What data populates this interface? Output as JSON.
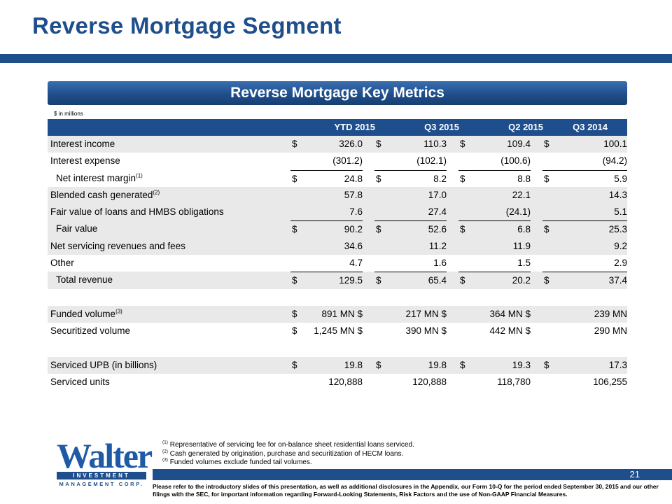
{
  "slide": {
    "title": "Reverse Mortgage Segment",
    "banner": "Reverse Mortgage Key Metrics",
    "units_note": "$ in millions",
    "page_number": "21"
  },
  "table": {
    "columns": [
      "YTD 2015",
      "Q3 2015",
      "Q2 2015",
      "Q3 2014"
    ],
    "rows": [
      {
        "label": "Interest income",
        "sup": "",
        "cur": "$",
        "values": [
          "326.0",
          "110.3",
          "109.4",
          "100.1"
        ]
      },
      {
        "label": "Interest expense",
        "sup": "",
        "cur": "",
        "values": [
          "(301.2)",
          "(102.1)",
          "(100.6)",
          "(94.2)"
        ]
      },
      {
        "label": "Net interest margin",
        "sup": "(1)",
        "cur": "$",
        "values": [
          "24.8",
          "8.2",
          "8.8",
          "5.9"
        ]
      },
      {
        "label": "Blended cash generated",
        "sup": "(2)",
        "cur": "",
        "values": [
          "57.8",
          "17.0",
          "22.1",
          "14.3"
        ]
      },
      {
        "label": "Fair value of loans and HMBS obligations",
        "sup": "",
        "cur": "",
        "values": [
          "7.6",
          "27.4",
          "(24.1)",
          "5.1"
        ]
      },
      {
        "label": "Fair value",
        "sup": "",
        "cur": "$",
        "values": [
          "90.2",
          "52.6",
          "6.8",
          "25.3"
        ]
      },
      {
        "label": "Net servicing revenues and fees",
        "sup": "",
        "cur": "",
        "values": [
          "34.6",
          "11.2",
          "11.9",
          "9.2"
        ]
      },
      {
        "label": "Other",
        "sup": "",
        "cur": "",
        "values": [
          "4.7",
          "1.6",
          "1.5",
          "2.9"
        ]
      },
      {
        "label": "Total revenue",
        "sup": "",
        "cur": "$",
        "values": [
          "129.5",
          "65.4",
          "20.2",
          "37.4"
        ]
      },
      {
        "label": "Funded volume",
        "sup": "(3)",
        "cur": "$",
        "values": [
          "891 MN $",
          "217 MN $",
          "364 MN $",
          "239 MN"
        ]
      },
      {
        "label": "Securitized volume",
        "sup": "",
        "cur": "$",
        "values": [
          "1,245 MN $",
          "390 MN $",
          "442 MN $",
          "290 MN"
        ]
      },
      {
        "label": "Serviced UPB (in billions)",
        "sup": "",
        "cur": "$",
        "values": [
          "19.8",
          "19.8",
          "19.3",
          "17.3"
        ]
      },
      {
        "label": "Serviced units",
        "sup": "",
        "cur": "",
        "values": [
          "120,888",
          "120,888",
          "118,780",
          "106,255"
        ]
      }
    ]
  },
  "footnotes": [
    {
      "mark": "(1)",
      "text": "Representative of servicing fee for on-balance sheet residential loans serviced."
    },
    {
      "mark": "(2)",
      "text": "Cash generated by origination, purchase and securitization of HECM loans."
    },
    {
      "mark": "(3)",
      "text": "Funded volumes exclude funded tail volumes."
    }
  ],
  "logo": {
    "word": "Walter",
    "line1": "INVESTMENT",
    "line2": "MANAGEMENT CORP."
  },
  "disclaimer": "Please refer to the introductory slides of this presentation, as well as additional disclosures in the Appendix, our Form 10-Q for the period ended September 30, 2015 and our other filings with the SEC, for important information regarding Forward-Looking Statements, Risk Factors and the use of Non-GAAP Financial Measures.",
  "colors": {
    "brand_blue": "#1f4e8c",
    "row_shade": "#e9e9e9"
  }
}
